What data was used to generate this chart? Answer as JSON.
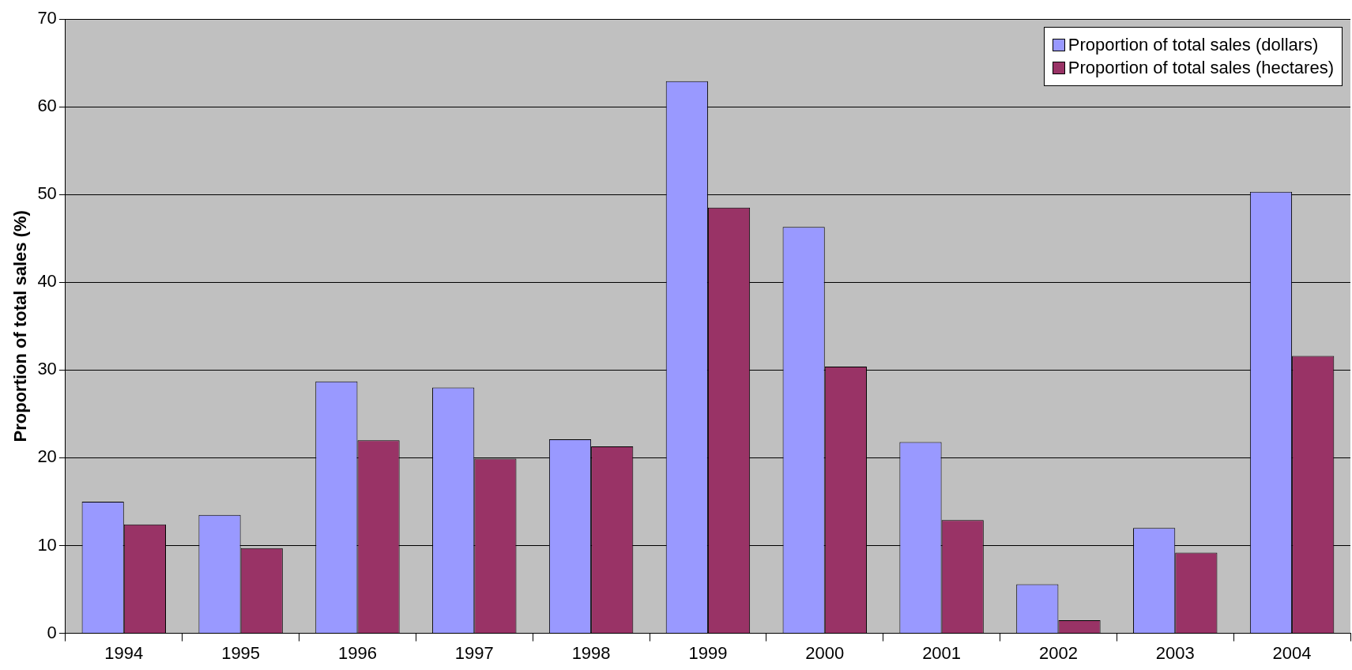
{
  "chart_data": {
    "type": "bar",
    "ylabel": "Proportion of total sales (%)",
    "categories": [
      "1994",
      "1995",
      "1996",
      "1997",
      "1998",
      "1999",
      "2000",
      "2001",
      "2002",
      "2003",
      "2004"
    ],
    "series": [
      {
        "name": "Proportion of total sales (dollars)",
        "color": "#9999ff",
        "values": [
          15.0,
          13.5,
          28.7,
          28.0,
          22.1,
          62.9,
          46.3,
          21.8,
          5.6,
          12.0,
          50.3
        ]
      },
      {
        "name": "Proportion of total sales (hectares)",
        "color": "#993366",
        "values": [
          12.4,
          9.7,
          22.0,
          19.9,
          21.3,
          48.5,
          30.4,
          12.9,
          1.5,
          9.2,
          31.6
        ]
      }
    ],
    "ylim": [
      0,
      70
    ],
    "yticks": [
      0,
      10,
      20,
      30,
      40,
      50,
      60,
      70
    ],
    "grid": "y",
    "legend": "top right"
  }
}
